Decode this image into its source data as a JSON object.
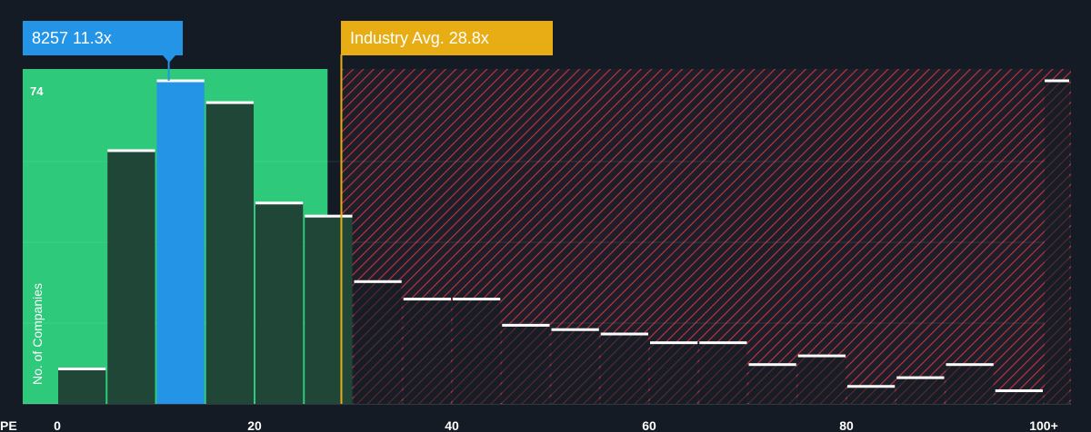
{
  "callouts": {
    "company": "8257 11.3x",
    "industry": "Industry Avg. 28.8x"
  },
  "colors": {
    "background": "#151b24",
    "company_zone": "#2ec97a",
    "company_bar": "#2394e6",
    "bar_fill": "#1f4636",
    "industry_line": "#e8ad14",
    "hatch": "#c9323a"
  },
  "chart_data": {
    "type": "bar",
    "title": "",
    "xlabel": "PE",
    "ylabel": "No. of Companies",
    "company_value": 11.3,
    "industry_avg": 28.8,
    "xlim": [
      0,
      100
    ],
    "ylim": [
      0,
      74
    ],
    "y_label_value": 74,
    "x_ticks": [
      {
        "value": 0,
        "label": "0"
      },
      {
        "value": 20,
        "label": "20"
      },
      {
        "value": 40,
        "label": "40"
      },
      {
        "value": 60,
        "label": "60"
      },
      {
        "value": 80,
        "label": "80"
      },
      {
        "value": 100,
        "label": "100+"
      }
    ],
    "bins": [
      {
        "start": 0,
        "end": 5,
        "value": 8
      },
      {
        "start": 5,
        "end": 10,
        "value": 58
      },
      {
        "start": 10,
        "end": 15,
        "value": 74,
        "highlight": true
      },
      {
        "start": 15,
        "end": 20,
        "value": 69
      },
      {
        "start": 20,
        "end": 25,
        "value": 46
      },
      {
        "start": 25,
        "end": 30,
        "value": 43
      },
      {
        "start": 30,
        "end": 35,
        "value": 28
      },
      {
        "start": 35,
        "end": 40,
        "value": 24
      },
      {
        "start": 40,
        "end": 45,
        "value": 24
      },
      {
        "start": 45,
        "end": 50,
        "value": 18
      },
      {
        "start": 50,
        "end": 55,
        "value": 17
      },
      {
        "start": 55,
        "end": 60,
        "value": 16
      },
      {
        "start": 60,
        "end": 65,
        "value": 14
      },
      {
        "start": 65,
        "end": 70,
        "value": 14
      },
      {
        "start": 70,
        "end": 75,
        "value": 9
      },
      {
        "start": 75,
        "end": 80,
        "value": 11
      },
      {
        "start": 80,
        "end": 85,
        "value": 4
      },
      {
        "start": 85,
        "end": 90,
        "value": 6
      },
      {
        "start": 90,
        "end": 95,
        "value": 9
      },
      {
        "start": 95,
        "end": 100,
        "value": 3
      },
      {
        "start": 100,
        "end": 102,
        "value": 74
      }
    ],
    "grid": true
  }
}
